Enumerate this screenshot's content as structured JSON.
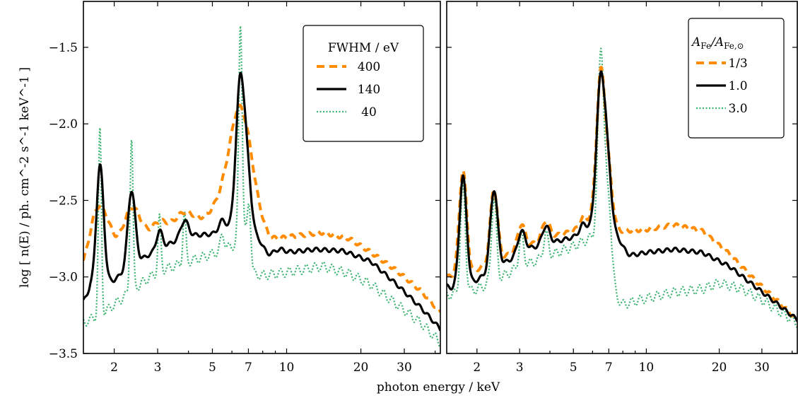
{
  "chart_data": [
    {
      "type": "line",
      "panel": "left",
      "xlabel": "photon energy / keV",
      "ylabel": "log [ n(E) / ph. cm^-2 s^-1 keV^-1 ]",
      "xscale": "log",
      "xlim": [
        1.5,
        42
      ],
      "ylim": [
        -3.5,
        -1.2
      ],
      "xticks": [
        2,
        3,
        5,
        7,
        10,
        20,
        30
      ],
      "xtick_labels": [
        "2",
        "3",
        "5",
        "7",
        "10",
        "20",
        "30"
      ],
      "yticks": [
        -3.5,
        -3.0,
        -2.5,
        -2.0,
        -1.5
      ],
      "ytick_labels": [
        "−3.5",
        "−3.0",
        "−2.5",
        "−2.0",
        "−1.5"
      ],
      "legend": {
        "title": "FWHM / eV",
        "placement": "top-right"
      },
      "series": [
        {
          "name": "400",
          "color": "#ff8c00",
          "style": "dashed",
          "baseline": [
            [
              1.5,
              -3.0
            ],
            [
              1.65,
              -2.95
            ],
            [
              1.8,
              -2.96
            ],
            [
              2.0,
              -2.9
            ],
            [
              2.3,
              -2.83
            ],
            [
              2.6,
              -2.77
            ],
            [
              3.0,
              -2.7
            ],
            [
              3.5,
              -2.68
            ],
            [
              4.0,
              -2.66
            ],
            [
              5.0,
              -2.6
            ],
            [
              6.0,
              -2.58
            ],
            [
              6.3,
              -2.56
            ],
            [
              7.0,
              -2.64
            ],
            [
              7.5,
              -2.7
            ],
            [
              8.5,
              -2.77
            ],
            [
              10,
              -2.74
            ],
            [
              14,
              -2.71
            ],
            [
              18,
              -2.75
            ],
            [
              22,
              -2.84
            ],
            [
              28,
              -2.96
            ],
            [
              35,
              -3.09
            ],
            [
              42,
              -3.23
            ]
          ],
          "peaks": [
            [
              1.75,
              0.42,
              0.04
            ],
            [
              2.35,
              0.27,
              0.035
            ],
            [
              3.05,
              0.06,
              0.03
            ],
            [
              3.85,
              0.09,
              0.035
            ],
            [
              5.5,
              0.05,
              0.04
            ],
            [
              6.5,
              0.62,
              0.045
            ],
            [
              7.05,
              0.08,
              0.05
            ]
          ]
        },
        {
          "name": "140",
          "color": "#000000",
          "style": "solid",
          "baseline": [
            [
              1.5,
              -3.16
            ],
            [
              1.6,
              -3.07
            ],
            [
              1.7,
              -3.1
            ],
            [
              1.8,
              -3.05
            ],
            [
              2.0,
              -3.02
            ],
            [
              2.2,
              -2.97
            ],
            [
              2.5,
              -2.9
            ],
            [
              2.8,
              -2.85
            ],
            [
              3.2,
              -2.8
            ],
            [
              3.6,
              -2.76
            ],
            [
              4.0,
              -2.73
            ],
            [
              5.0,
              -2.72
            ],
            [
              6.0,
              -2.7
            ],
            [
              6.3,
              -2.72
            ],
            [
              6.8,
              -2.7
            ],
            [
              7.2,
              -2.85
            ],
            [
              8.0,
              -2.87
            ],
            [
              10,
              -2.84
            ],
            [
              13,
              -2.82
            ],
            [
              17,
              -2.83
            ],
            [
              22,
              -2.9
            ],
            [
              28,
              -3.05
            ],
            [
              35,
              -3.2
            ],
            [
              42,
              -3.34
            ]
          ],
          "peaks": [
            [
              1.75,
              0.8,
              0.015
            ],
            [
              2.35,
              0.5,
              0.015
            ],
            [
              3.05,
              0.12,
              0.012
            ],
            [
              3.85,
              0.11,
              0.015
            ],
            [
              5.5,
              0.08,
              0.015
            ],
            [
              6.5,
              1.02,
              0.018
            ],
            [
              7.05,
              0.33,
              0.015
            ],
            [
              7.7,
              0.1,
              0.02
            ],
            [
              9.3,
              0.03,
              0.02
            ]
          ]
        },
        {
          "name": "40",
          "color": "#3cb371",
          "style": "dotted",
          "baseline": [
            [
              1.5,
              -3.3
            ],
            [
              1.8,
              -3.24
            ],
            [
              2.0,
              -3.18
            ],
            [
              2.4,
              -3.08
            ],
            [
              2.8,
              -3.0
            ],
            [
              3.2,
              -2.95
            ],
            [
              4.0,
              -2.9
            ],
            [
              5.0,
              -2.85
            ],
            [
              6.0,
              -2.8
            ],
            [
              6.8,
              -2.74
            ],
            [
              7.3,
              -2.98
            ],
            [
              8.0,
              -2.99
            ],
            [
              10,
              -2.97
            ],
            [
              14,
              -2.93
            ],
            [
              18,
              -2.98
            ],
            [
              22,
              -3.05
            ],
            [
              28,
              -3.18
            ],
            [
              35,
              -3.3
            ],
            [
              42,
              -3.43
            ]
          ],
          "peaks": [
            [
              1.75,
              1.2,
              0.006
            ],
            [
              2.35,
              1.0,
              0.006
            ],
            [
              3.05,
              0.35,
              0.006
            ],
            [
              3.85,
              0.32,
              0.006
            ],
            [
              5.5,
              0.1,
              0.008
            ],
            [
              6.5,
              1.42,
              0.007
            ],
            [
              7.05,
              0.35,
              0.007
            ]
          ]
        }
      ]
    },
    {
      "type": "line",
      "panel": "right",
      "xlabel": "photon energy / keV",
      "xscale": "log",
      "xlim": [
        1.5,
        42
      ],
      "ylim": [
        -3.5,
        -1.2
      ],
      "xticks": [
        2,
        3,
        5,
        7,
        10,
        20,
        30
      ],
      "xtick_labels": [
        "2",
        "3",
        "5",
        "7",
        "10",
        "20",
        "30"
      ],
      "legend": {
        "title_main": "A",
        "title_sub1": "Fe",
        "title_sep": "/A",
        "title_sub2": "Fe,⊙",
        "placement": "top-right"
      },
      "series": [
        {
          "name": "1/3",
          "color": "#ff8c00",
          "style": "dashed",
          "baseline": [
            [
              1.5,
              -3.0
            ],
            [
              1.8,
              -2.98
            ],
            [
              2.0,
              -2.95
            ],
            [
              2.4,
              -2.9
            ],
            [
              2.8,
              -2.84
            ],
            [
              3.2,
              -2.8
            ],
            [
              4.0,
              -2.74
            ],
            [
              5.0,
              -2.7
            ],
            [
              6.0,
              -2.64
            ],
            [
              6.8,
              -2.62
            ],
            [
              7.2,
              -2.68
            ],
            [
              8.0,
              -2.7
            ],
            [
              10,
              -2.69
            ],
            [
              13,
              -2.66
            ],
            [
              17,
              -2.7
            ],
            [
              22,
              -2.85
            ],
            [
              28,
              -3.02
            ],
            [
              35,
              -3.16
            ],
            [
              42,
              -3.28
            ]
          ],
          "peaks": [
            [
              1.75,
              0.68,
              0.015
            ],
            [
              2.35,
              0.48,
              0.015
            ],
            [
              3.05,
              0.16,
              0.015
            ],
            [
              3.85,
              0.12,
              0.015
            ],
            [
              5.5,
              0.06,
              0.015
            ],
            [
              6.5,
              0.97,
              0.018
            ],
            [
              7.05,
              0.25,
              0.015
            ]
          ]
        },
        {
          "name": "1.0",
          "color": "#000000",
          "style": "solid",
          "baseline": [
            [
              1.5,
              -3.06
            ],
            [
              1.7,
              -3.1
            ],
            [
              2.0,
              -3.02
            ],
            [
              2.4,
              -2.94
            ],
            [
              2.8,
              -2.88
            ],
            [
              3.2,
              -2.82
            ],
            [
              4.0,
              -2.78
            ],
            [
              5.0,
              -2.74
            ],
            [
              6.0,
              -2.69
            ],
            [
              6.8,
              -2.68
            ],
            [
              7.2,
              -2.85
            ],
            [
              8.0,
              -2.87
            ],
            [
              10,
              -2.84
            ],
            [
              13,
              -2.82
            ],
            [
              17,
              -2.84
            ],
            [
              22,
              -2.93
            ],
            [
              28,
              -3.06
            ],
            [
              35,
              -3.18
            ],
            [
              42,
              -3.28
            ]
          ],
          "peaks": [
            [
              1.75,
              0.74,
              0.015
            ],
            [
              2.35,
              0.52,
              0.015
            ],
            [
              3.05,
              0.14,
              0.015
            ],
            [
              3.85,
              0.12,
              0.015
            ],
            [
              5.5,
              0.06,
              0.015
            ],
            [
              6.5,
              1.0,
              0.018
            ],
            [
              7.05,
              0.35,
              0.015
            ],
            [
              7.7,
              0.1,
              0.02
            ]
          ]
        },
        {
          "name": "3.0",
          "color": "#3cb371",
          "style": "dotted",
          "baseline": [
            [
              1.5,
              -3.12
            ],
            [
              1.8,
              -3.1
            ],
            [
              2.0,
              -3.08
            ],
            [
              2.4,
              -3.02
            ],
            [
              2.8,
              -2.96
            ],
            [
              3.2,
              -2.92
            ],
            [
              4.0,
              -2.86
            ],
            [
              5.0,
              -2.8
            ],
            [
              6.0,
              -2.74
            ],
            [
              6.8,
              -2.7
            ],
            [
              7.2,
              -3.1
            ],
            [
              8.0,
              -3.18
            ],
            [
              10,
              -3.14
            ],
            [
              13,
              -3.1
            ],
            [
              17,
              -3.08
            ],
            [
              20,
              -3.04
            ],
            [
              25,
              -3.08
            ],
            [
              30,
              -3.15
            ],
            [
              35,
              -3.22
            ],
            [
              42,
              -3.3
            ]
          ],
          "peaks": [
            [
              1.75,
              0.7,
              0.01
            ],
            [
              2.35,
              0.55,
              0.01
            ],
            [
              3.05,
              0.2,
              0.01
            ],
            [
              3.85,
              0.15,
              0.01
            ],
            [
              6.5,
              1.22,
              0.012
            ],
            [
              7.05,
              0.42,
              0.012
            ]
          ]
        }
      ]
    }
  ]
}
